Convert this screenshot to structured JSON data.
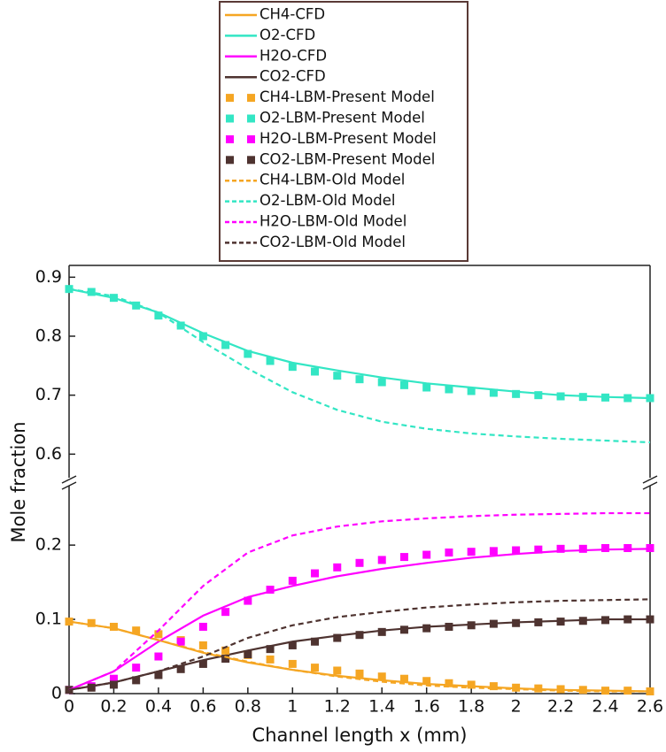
{
  "chart_data": {
    "type": "line",
    "xlabel": "Channel length x (mm)",
    "ylabel": "Mole fraction",
    "xlim": [
      0,
      2.6
    ],
    "xticks": [
      0,
      0.2,
      0.4,
      0.6,
      0.8,
      1,
      1.2,
      1.4,
      1.6,
      1.8,
      2,
      2.2,
      2.4,
      2.6
    ],
    "ylim": [
      0,
      0.28
    ],
    "yticks": [
      0,
      0.1,
      0.2
    ],
    "y2lim": [
      0.56,
      0.92
    ],
    "y2ticks": [
      0.6,
      0.7,
      0.8,
      0.9
    ],
    "broken_axis": true,
    "grid": false,
    "legend": "top",
    "series": [
      {
        "name": "CH4-CFD",
        "color": "#f5a623",
        "style": "solid",
        "x": [
          0,
          0.2,
          0.4,
          0.6,
          0.8,
          1,
          1.2,
          1.4,
          1.6,
          1.8,
          2,
          2.2,
          2.4,
          2.6
        ],
        "values": [
          0.097,
          0.088,
          0.072,
          0.055,
          0.042,
          0.032,
          0.024,
          0.018,
          0.013,
          0.01,
          0.007,
          0.005,
          0.004,
          0.003
        ]
      },
      {
        "name": "O2-CFD",
        "color": "#33e6c4",
        "style": "solid",
        "axis": "y2",
        "x": [
          0,
          0.2,
          0.4,
          0.6,
          0.8,
          1,
          1.2,
          1.4,
          1.6,
          1.8,
          2,
          2.2,
          2.4,
          2.6
        ],
        "values": [
          0.88,
          0.865,
          0.84,
          0.805,
          0.775,
          0.755,
          0.742,
          0.73,
          0.72,
          0.713,
          0.706,
          0.7,
          0.697,
          0.695
        ]
      },
      {
        "name": "H2O-CFD",
        "color": "#ff00ff",
        "style": "solid",
        "x": [
          0,
          0.2,
          0.4,
          0.6,
          0.8,
          1,
          1.2,
          1.4,
          1.6,
          1.8,
          2,
          2.2,
          2.4,
          2.6
        ],
        "values": [
          0.005,
          0.03,
          0.07,
          0.105,
          0.13,
          0.145,
          0.158,
          0.168,
          0.176,
          0.183,
          0.188,
          0.192,
          0.194,
          0.195
        ]
      },
      {
        "name": "CO2-CFD",
        "color": "#4e3330",
        "style": "solid",
        "x": [
          0,
          0.2,
          0.4,
          0.6,
          0.8,
          1,
          1.2,
          1.4,
          1.6,
          1.8,
          2,
          2.2,
          2.4,
          2.6
        ],
        "values": [
          0.005,
          0.015,
          0.03,
          0.045,
          0.058,
          0.07,
          0.078,
          0.085,
          0.09,
          0.093,
          0.096,
          0.098,
          0.1,
          0.1
        ]
      },
      {
        "name": "CH4-LBM-Present Model",
        "color": "#f5a623",
        "style": "squares",
        "x": [
          0,
          0.1,
          0.2,
          0.3,
          0.4,
          0.5,
          0.6,
          0.7,
          0.8,
          0.9,
          1,
          1.1,
          1.2,
          1.3,
          1.4,
          1.5,
          1.6,
          1.7,
          1.8,
          1.9,
          2,
          2.1,
          2.2,
          2.3,
          2.4,
          2.5,
          2.6
        ],
        "values": [
          0.097,
          0.095,
          0.09,
          0.085,
          0.08,
          0.072,
          0.065,
          0.058,
          0.052,
          0.046,
          0.04,
          0.035,
          0.031,
          0.027,
          0.023,
          0.02,
          0.017,
          0.014,
          0.012,
          0.01,
          0.008,
          0.007,
          0.006,
          0.005,
          0.004,
          0.004,
          0.003
        ]
      },
      {
        "name": "O2-LBM-Present Model",
        "color": "#33e6c4",
        "style": "squares",
        "axis": "y2",
        "x": [
          0,
          0.1,
          0.2,
          0.3,
          0.4,
          0.5,
          0.6,
          0.7,
          0.8,
          0.9,
          1,
          1.1,
          1.2,
          1.3,
          1.4,
          1.5,
          1.6,
          1.7,
          1.8,
          1.9,
          2,
          2.1,
          2.2,
          2.3,
          2.4,
          2.5,
          2.6
        ],
        "values": [
          0.88,
          0.875,
          0.865,
          0.852,
          0.835,
          0.818,
          0.8,
          0.785,
          0.77,
          0.758,
          0.748,
          0.74,
          0.733,
          0.727,
          0.722,
          0.717,
          0.713,
          0.71,
          0.707,
          0.704,
          0.702,
          0.7,
          0.698,
          0.697,
          0.696,
          0.695,
          0.695
        ]
      },
      {
        "name": "H2O-LBM-Present Model",
        "color": "#ff00ff",
        "style": "squares",
        "x": [
          0,
          0.1,
          0.2,
          0.3,
          0.4,
          0.5,
          0.6,
          0.7,
          0.8,
          0.9,
          1,
          1.1,
          1.2,
          1.3,
          1.4,
          1.5,
          1.6,
          1.7,
          1.8,
          1.9,
          2,
          2.1,
          2.2,
          2.3,
          2.4,
          2.5,
          2.6
        ],
        "values": [
          0.005,
          0.01,
          0.02,
          0.035,
          0.05,
          0.07,
          0.09,
          0.11,
          0.125,
          0.14,
          0.152,
          0.162,
          0.17,
          0.176,
          0.18,
          0.184,
          0.187,
          0.19,
          0.191,
          0.192,
          0.193,
          0.194,
          0.195,
          0.195,
          0.196,
          0.196,
          0.196
        ]
      },
      {
        "name": "CO2-LBM-Present Model",
        "color": "#4e3330",
        "style": "squares",
        "x": [
          0,
          0.1,
          0.2,
          0.3,
          0.4,
          0.5,
          0.6,
          0.7,
          0.8,
          0.9,
          1,
          1.1,
          1.2,
          1.3,
          1.4,
          1.5,
          1.6,
          1.7,
          1.8,
          1.9,
          2,
          2.1,
          2.2,
          2.3,
          2.4,
          2.5,
          2.6
        ],
        "values": [
          0.005,
          0.008,
          0.012,
          0.018,
          0.025,
          0.033,
          0.04,
          0.047,
          0.053,
          0.06,
          0.065,
          0.07,
          0.075,
          0.079,
          0.083,
          0.086,
          0.088,
          0.09,
          0.092,
          0.094,
          0.095,
          0.096,
          0.097,
          0.098,
          0.099,
          0.1,
          0.1
        ]
      },
      {
        "name": "CH4-LBM-Old Model",
        "color": "#f5a623",
        "style": "dashed",
        "x": [
          0,
          0.2,
          0.4,
          0.6,
          0.8,
          1,
          1.2,
          1.4,
          1.6,
          1.8,
          2,
          2.2,
          2.4,
          2.6
        ],
        "values": [
          0.097,
          0.088,
          0.072,
          0.056,
          0.043,
          0.032,
          0.023,
          0.016,
          0.011,
          0.008,
          0.006,
          0.004,
          0.003,
          0.003
        ]
      },
      {
        "name": "O2-LBM-Old Model",
        "color": "#33e6c4",
        "style": "dashed",
        "axis": "y2",
        "x": [
          0,
          0.2,
          0.4,
          0.6,
          0.8,
          1,
          1.2,
          1.4,
          1.6,
          1.8,
          2,
          2.2,
          2.4,
          2.6
        ],
        "values": [
          0.88,
          0.868,
          0.84,
          0.79,
          0.745,
          0.705,
          0.675,
          0.655,
          0.643,
          0.635,
          0.63,
          0.626,
          0.623,
          0.62
        ]
      },
      {
        "name": "H2O-LBM-Old Model",
        "color": "#ff00ff",
        "style": "dashed",
        "x": [
          0,
          0.2,
          0.4,
          0.6,
          0.8,
          1,
          1.2,
          1.4,
          1.6,
          1.8,
          2,
          2.2,
          2.4,
          2.6
        ],
        "values": [
          0.005,
          0.03,
          0.085,
          0.145,
          0.19,
          0.213,
          0.225,
          0.232,
          0.236,
          0.239,
          0.241,
          0.242,
          0.243,
          0.243
        ]
      },
      {
        "name": "CO2-LBM-Old Model",
        "color": "#4e3330",
        "style": "dashed",
        "x": [
          0,
          0.2,
          0.4,
          0.6,
          0.8,
          1,
          1.2,
          1.4,
          1.6,
          1.8,
          2,
          2.2,
          2.4,
          2.6
        ],
        "values": [
          0.005,
          0.015,
          0.03,
          0.05,
          0.075,
          0.092,
          0.103,
          0.11,
          0.116,
          0.12,
          0.123,
          0.125,
          0.126,
          0.127
        ]
      }
    ]
  }
}
